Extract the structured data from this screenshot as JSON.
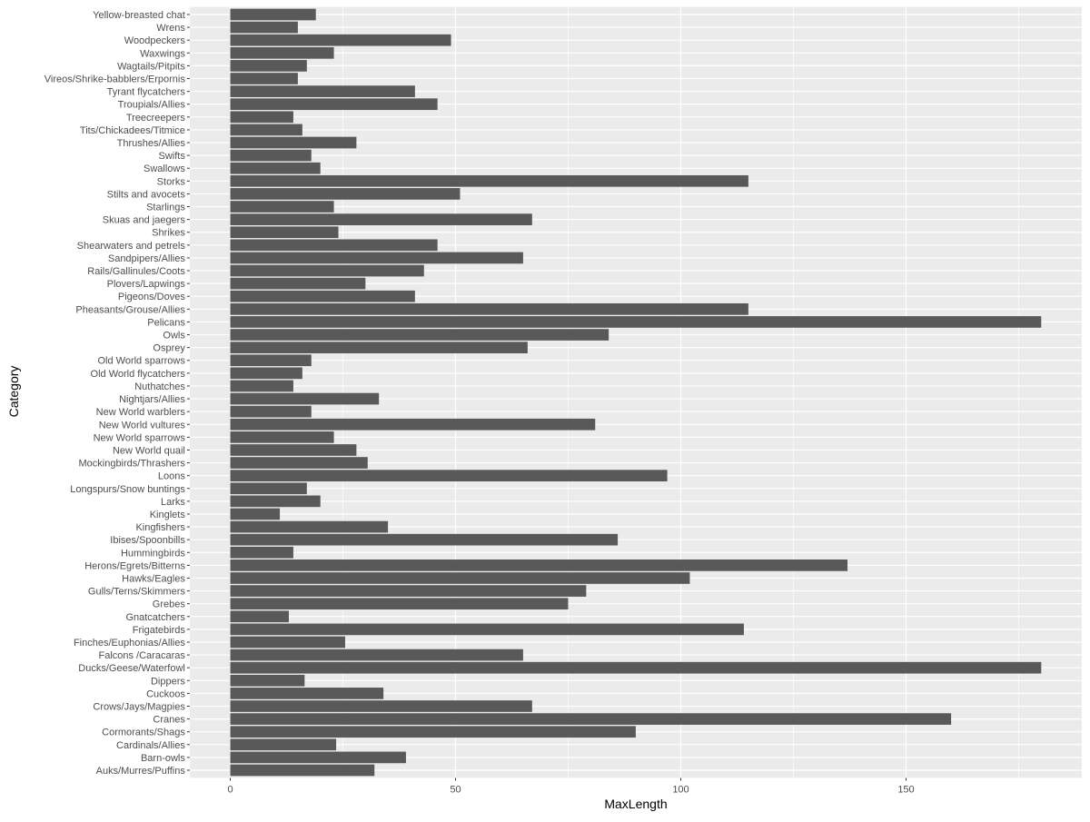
{
  "chart_data": {
    "type": "bar",
    "orientation": "horizontal",
    "title": "",
    "xlabel": "MaxLength",
    "ylabel": "Category",
    "xlim": [
      0,
      180
    ],
    "xticks": [
      0,
      50,
      100,
      150
    ],
    "grid": true,
    "colors": {
      "bar": "#595959",
      "panel": "#ebebeb",
      "grid": "#ffffff",
      "tick_text": "#4d4d4d"
    },
    "categories": [
      "Auks/Murres/Puffins",
      "Barn-owls",
      "Cardinals/Allies",
      "Cormorants/Shags",
      "Cranes",
      "Crows/Jays/Magpies",
      "Cuckoos",
      "Dippers",
      "Ducks/Geese/Waterfowl",
      "Falcons /Caracaras",
      "Finches/Euphonias/Allies",
      "Frigatebirds",
      "Gnatcatchers",
      "Grebes",
      "Gulls/Terns/Skimmers",
      "Hawks/Eagles",
      "Herons/Egrets/Bitterns",
      "Hummingbirds",
      "Ibises/Spoonbills",
      "Kingfishers",
      "Kinglets",
      "Larks",
      "Longspurs/Snow buntings",
      "Loons",
      "Mockingbirds/Thrashers",
      "New World quail",
      "New World sparrows",
      "New World vultures",
      "New World warblers",
      "Nightjars/Allies",
      "Nuthatches",
      "Old World flycatchers",
      "Old World sparrows",
      "Osprey",
      "Owls",
      "Pelicans",
      "Pheasants/Grouse/Allies",
      "Pigeons/Doves",
      "Plovers/Lapwings",
      "Rails/Gallinules/Coots",
      "Sandpipers/Allies",
      "Shearwaters and petrels",
      "Shrikes",
      "Skuas and jaegers",
      "Starlings",
      "Stilts and avocets",
      "Storks",
      "Swallows",
      "Swifts",
      "Thrushes/Allies",
      "Tits/Chickadees/Titmice",
      "Treecreepers",
      "Troupials/Allies",
      "Tyrant flycatchers",
      "Vireos/Shrike-babblers/Erpornis",
      "Wagtails/Pitpits",
      "Waxwings",
      "Woodpeckers",
      "Wrens",
      "Yellow-breasted chat"
    ],
    "values": [
      32,
      39,
      23.5,
      90,
      160,
      67,
      34,
      16.5,
      180,
      65,
      25.5,
      114,
      13,
      75,
      79,
      102,
      137,
      14,
      86,
      35,
      11,
      20,
      17,
      97,
      30.5,
      28,
      23,
      81,
      18,
      33,
      14,
      16,
      18,
      66,
      84,
      180,
      115,
      41,
      30,
      43,
      65,
      46,
      24,
      67,
      23,
      51,
      115,
      20,
      18,
      28,
      16,
      14,
      46,
      41,
      15,
      17,
      23,
      49,
      15,
      19
    ]
  }
}
